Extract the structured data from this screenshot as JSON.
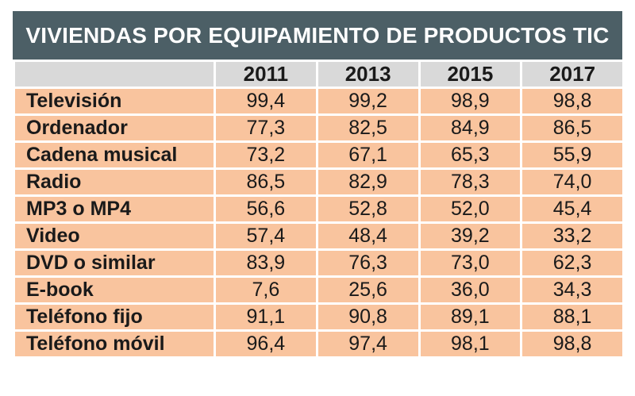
{
  "chart_data": {
    "type": "table",
    "title": "VIVIENDAS POR EQUIPAMIENTO DE PRODUCTOS TIC",
    "columns": [
      "2011",
      "2013",
      "2015",
      "2017"
    ],
    "rows": [
      {
        "label": "Televisión",
        "values": [
          "99,4",
          "99,2",
          "98,9",
          "98,8"
        ]
      },
      {
        "label": "Ordenador",
        "values": [
          "77,3",
          "82,5",
          "84,9",
          "86,5"
        ]
      },
      {
        "label": "Cadena musical",
        "values": [
          "73,2",
          "67,1",
          "65,3",
          "55,9"
        ]
      },
      {
        "label": "Radio",
        "values": [
          "86,5",
          "82,9",
          "78,3",
          "74,0"
        ]
      },
      {
        "label": "MP3 o MP4",
        "values": [
          "56,6",
          "52,8",
          "52,0",
          "45,4"
        ]
      },
      {
        "label": "Video",
        "values": [
          "57,4",
          "48,4",
          "39,2",
          "33,2"
        ]
      },
      {
        "label": "DVD o similar",
        "values": [
          "83,9",
          "76,3",
          "73,0",
          "62,3"
        ]
      },
      {
        "label": "E-book",
        "values": [
          "7,6",
          "25,6",
          "36,0",
          "34,3"
        ]
      },
      {
        "label": "Teléfono fijo",
        "values": [
          "91,1",
          "90,8",
          "89,1",
          "88,1"
        ]
      },
      {
        "label": "Teléfono móvil",
        "values": [
          "96,4",
          "97,4",
          "98,1",
          "98,8"
        ]
      }
    ],
    "colors": {
      "title_bg": "#4c5f66",
      "header_bg": "#d9d9d9",
      "row_bg": "#f9c49e"
    }
  }
}
